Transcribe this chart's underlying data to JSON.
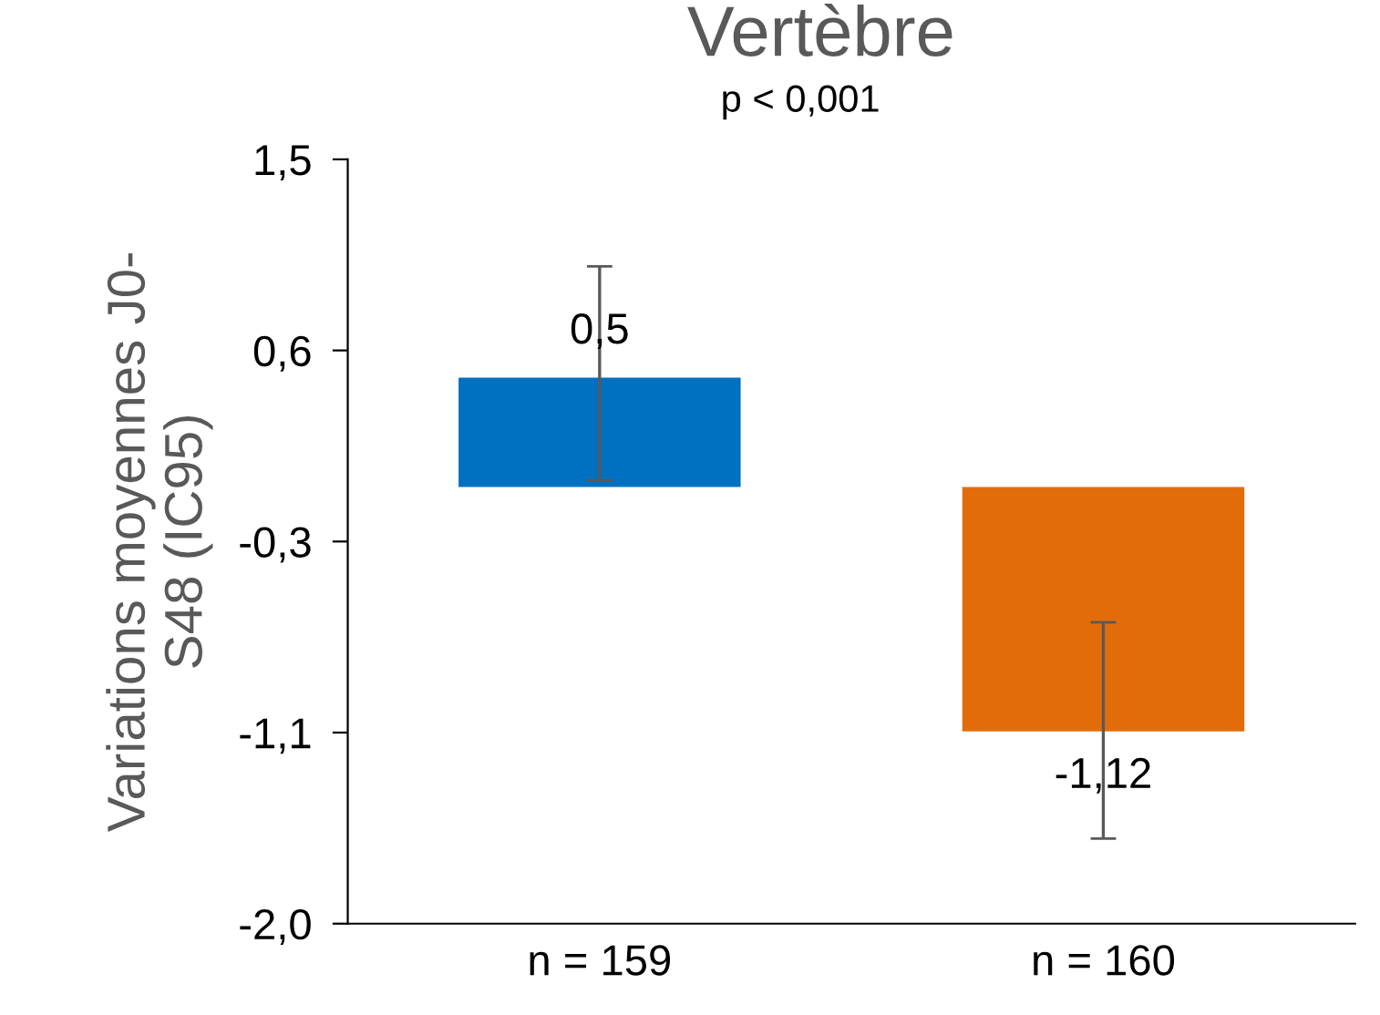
{
  "chart_data": {
    "type": "bar",
    "title": "Vertèbre",
    "ylabel": "Variations moyennes J0-\nS48 (IC95)",
    "annotations": [
      "p < 0,001"
    ],
    "categories": [
      "n = 159",
      "n = 160"
    ],
    "values": [
      0.5,
      -1.12
    ],
    "colors": [
      "#0070c0",
      "#e36c0a"
    ],
    "value_labels": [
      "0,5",
      "-1,12"
    ],
    "errors": [
      [
        0.03,
        1.01
      ],
      [
        -1.61,
        -0.62
      ]
    ],
    "ylim": [
      -2.0,
      1.5
    ],
    "yticks": [
      {
        "value": 1.5,
        "label": "1,5"
      },
      {
        "value": 0.625,
        "label": "0,6"
      },
      {
        "value": -0.25,
        "label": "-0,3"
      },
      {
        "value": -1.125,
        "label": "-1,1"
      },
      {
        "value": -2.0,
        "label": "-2,0"
      }
    ],
    "grid": false,
    "legend": false
  }
}
